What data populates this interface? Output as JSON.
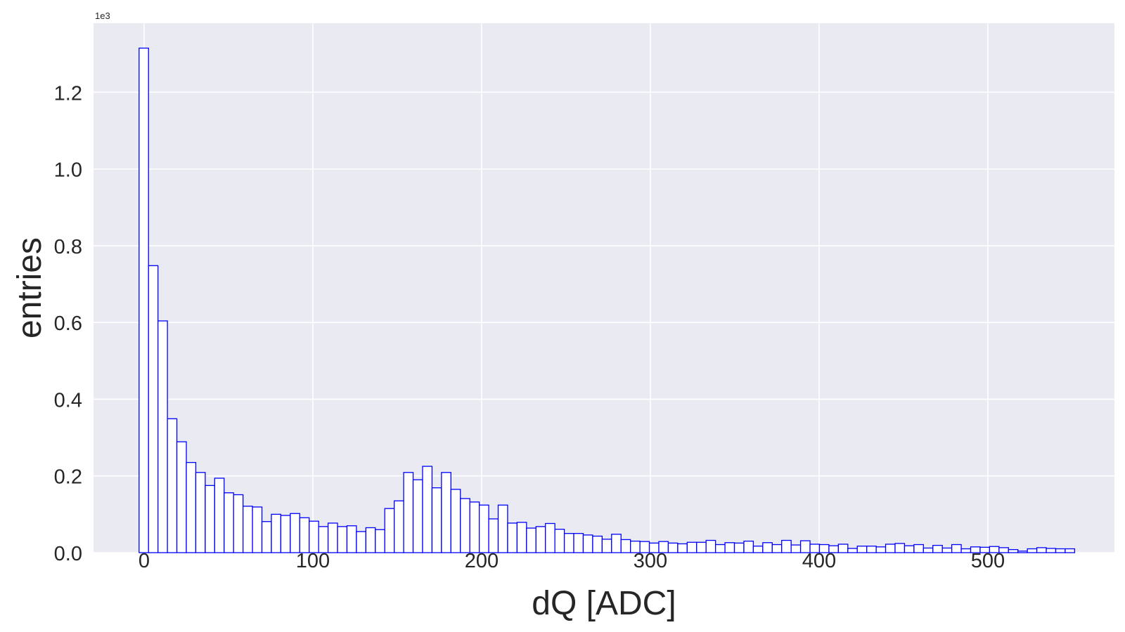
{
  "chart_data": {
    "type": "bar",
    "title": "",
    "xlabel": "dQ [ADC]",
    "ylabel": "entries",
    "y_offset_text": "1e3",
    "xlim": [
      -30,
      575
    ],
    "ylim": [
      0,
      1.38
    ],
    "bin_start": -3,
    "bin_width": 5.6,
    "x_ticks": [
      0,
      100,
      200,
      300,
      400,
      500
    ],
    "x_tick_labels": [
      "0",
      "100",
      "200",
      "300",
      "400",
      "500"
    ],
    "y_ticks": [
      0.0,
      0.2,
      0.4,
      0.6,
      0.8,
      1.0,
      1.2
    ],
    "y_tick_labels": [
      "0.0",
      "0.2",
      "0.4",
      "0.6",
      "0.8",
      "1.0",
      "1.2"
    ],
    "grid": true,
    "style": "histogram-step",
    "series": [
      {
        "values": [
          1.315,
          0.748,
          0.604,
          0.349,
          0.289,
          0.235,
          0.209,
          0.175,
          0.194,
          0.156,
          0.151,
          0.121,
          0.119,
          0.081,
          0.1,
          0.097,
          0.102,
          0.091,
          0.082,
          0.068,
          0.077,
          0.068,
          0.07,
          0.055,
          0.065,
          0.06,
          0.115,
          0.135,
          0.209,
          0.19,
          0.225,
          0.169,
          0.209,
          0.165,
          0.141,
          0.132,
          0.124,
          0.088,
          0.124,
          0.077,
          0.079,
          0.064,
          0.068,
          0.076,
          0.061,
          0.05,
          0.05,
          0.046,
          0.043,
          0.035,
          0.048,
          0.034,
          0.03,
          0.029,
          0.025,
          0.029,
          0.025,
          0.023,
          0.027,
          0.027,
          0.032,
          0.021,
          0.026,
          0.025,
          0.03,
          0.017,
          0.026,
          0.021,
          0.032,
          0.02,
          0.031,
          0.022,
          0.021,
          0.018,
          0.022,
          0.011,
          0.017,
          0.017,
          0.015,
          0.022,
          0.024,
          0.018,
          0.021,
          0.012,
          0.019,
          0.012,
          0.021,
          0.01,
          0.015,
          0.014,
          0.016,
          0.013,
          0.008,
          0.004,
          0.01,
          0.013,
          0.011,
          0.01,
          0.01
        ],
        "color": "#0000ff"
      }
    ],
    "colors": {
      "plot_background": "#eaeaf2",
      "grid": "#ffffff",
      "text": "#262626",
      "bar_edge": "#0000ff",
      "bar_fill": "#ffffff"
    }
  }
}
